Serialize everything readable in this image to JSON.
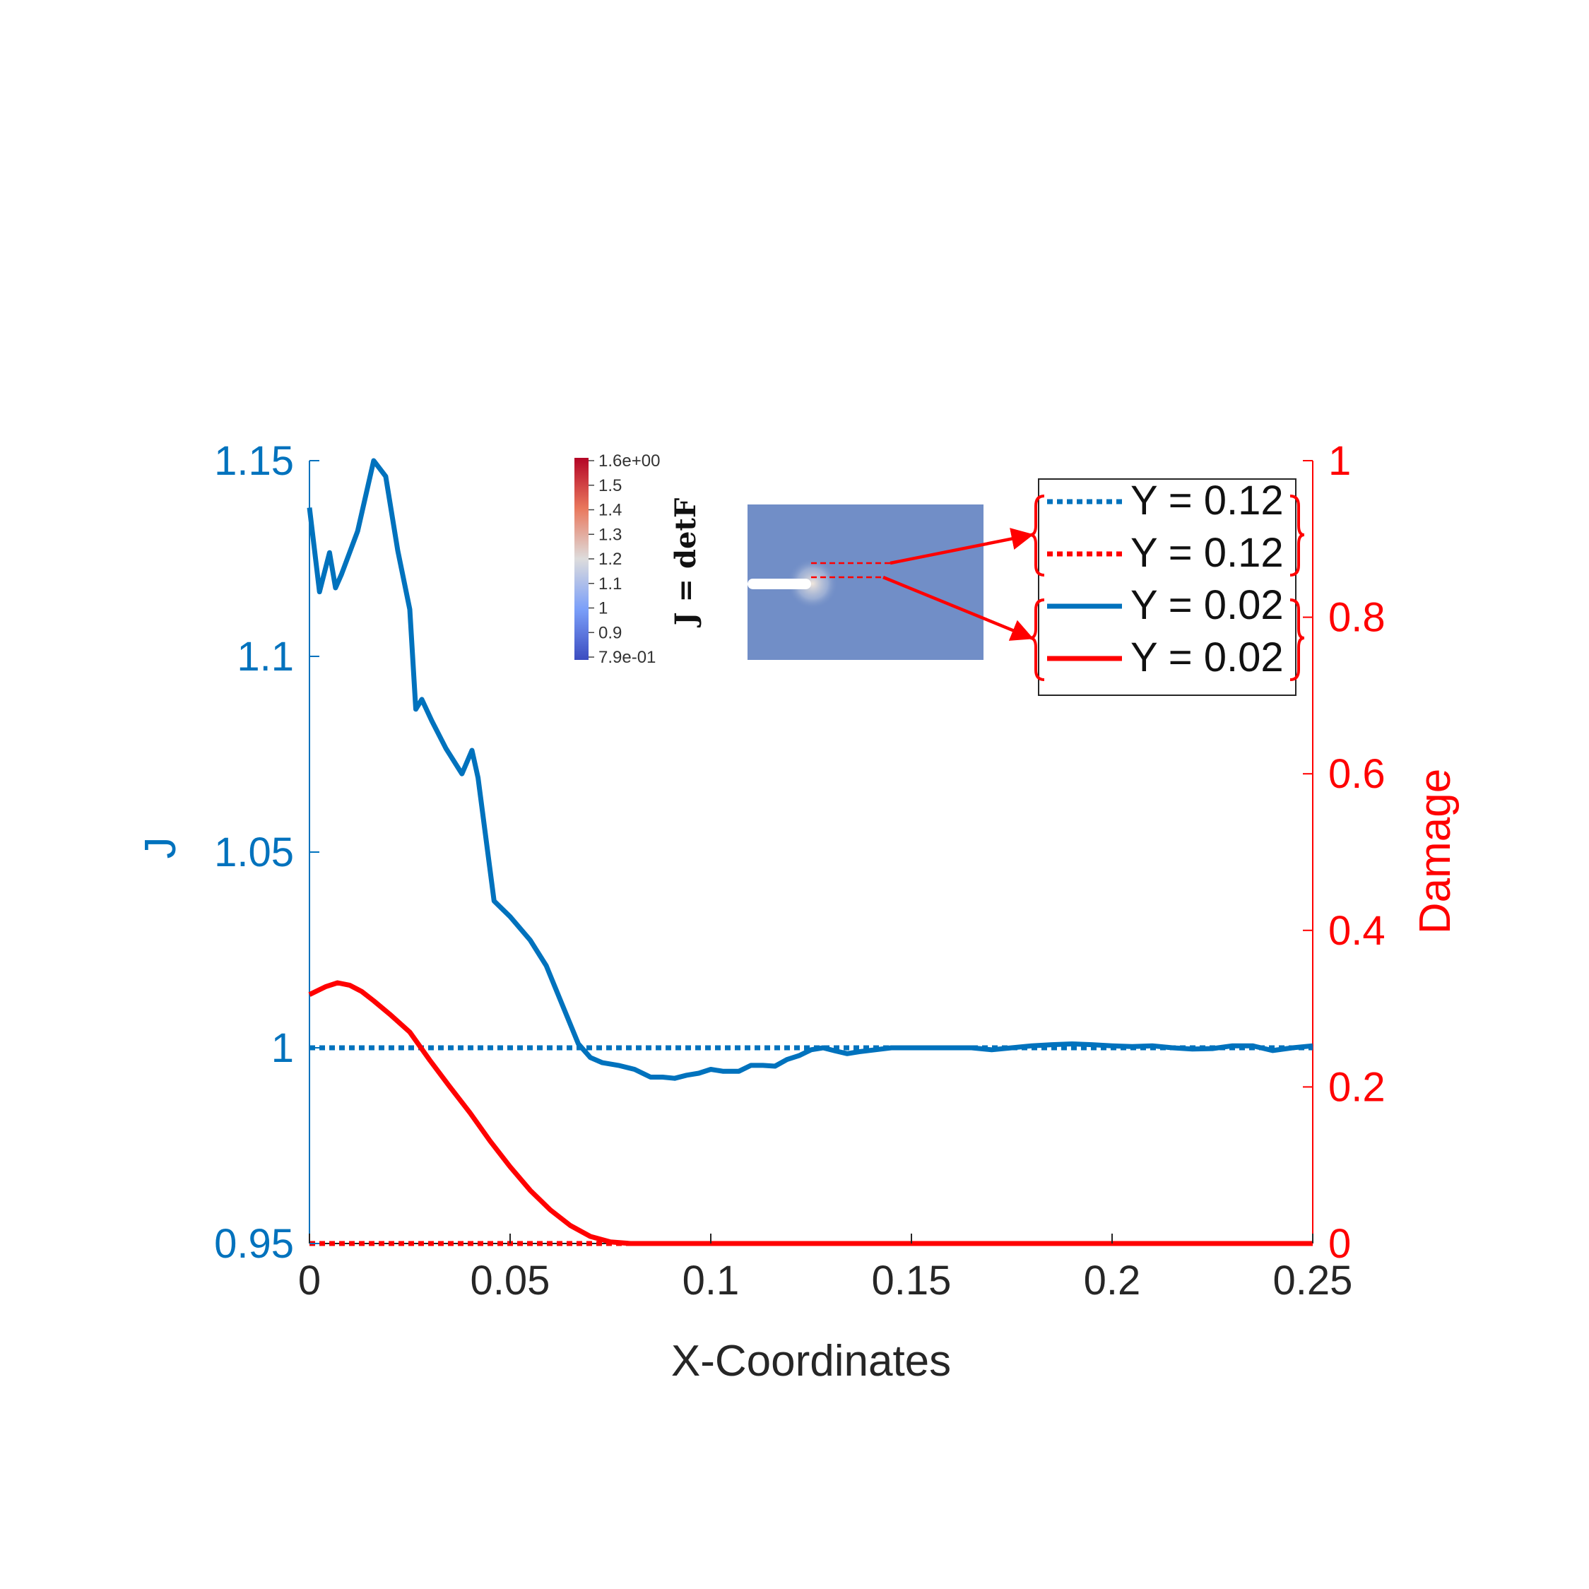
{
  "chart_data": {
    "type": "line",
    "xlabel": "X-Coordinates",
    "ylabel_left": "J",
    "ylabel_right": "Damage",
    "xlim": [
      0,
      0.25
    ],
    "ylim_left": [
      0.95,
      1.15
    ],
    "ylim_right": [
      0,
      1
    ],
    "xticks": [
      "0",
      "0.05",
      "0.1",
      "0.15",
      "0.2",
      "0.25"
    ],
    "yticks_left": [
      "0.95",
      "1",
      "1.05",
      "1.1",
      "1.15"
    ],
    "yticks_right": [
      "0",
      "0.2",
      "0.4",
      "0.6",
      "0.8",
      "1"
    ],
    "grid": false,
    "legend_position": "top-right",
    "colors": {
      "left_axis": "#0072BD",
      "right_axis": "#FF0000",
      "text": "#262626"
    },
    "series": [
      {
        "name": "Y = 0.12",
        "axis": "left",
        "style": "dotted",
        "color": "#0072BD",
        "x": [
          0,
          0.25
        ],
        "y": [
          1.0,
          1.0
        ]
      },
      {
        "name": "Y = 0.12",
        "axis": "right",
        "style": "dotted",
        "color": "#FF0000",
        "x": [
          0,
          0.25
        ],
        "y": [
          0.0,
          0.0
        ]
      },
      {
        "name": "Y = 0.02",
        "axis": "left",
        "style": "solid",
        "color": "#0072BD",
        "x": [
          0,
          0.0025,
          0.005,
          0.0065,
          0.008,
          0.012,
          0.016,
          0.019,
          0.022,
          0.025,
          0.0265,
          0.028,
          0.0305,
          0.034,
          0.038,
          0.0405,
          0.042,
          0.046,
          0.05,
          0.055,
          0.059,
          0.063,
          0.067,
          0.07,
          0.073,
          0.077,
          0.081,
          0.085,
          0.088,
          0.091,
          0.094,
          0.097,
          0.1,
          0.103,
          0.107,
          0.11,
          0.113,
          0.116,
          0.119,
          0.122,
          0.125,
          0.128,
          0.131,
          0.134,
          0.137,
          0.141,
          0.145,
          0.15,
          0.155,
          0.16,
          0.165,
          0.17,
          0.175,
          0.18,
          0.185,
          0.19,
          0.195,
          0.2,
          0.205,
          0.21,
          0.215,
          0.22,
          0.225,
          0.23,
          0.235,
          0.24,
          0.245,
          0.25
        ],
        "y": [
          1.138,
          1.1165,
          1.1265,
          1.1175,
          1.121,
          1.132,
          1.15,
          1.146,
          1.127,
          1.112,
          1.0865,
          1.089,
          1.0835,
          1.0765,
          1.07,
          1.076,
          1.069,
          1.0375,
          1.0335,
          1.0275,
          1.021,
          1.011,
          1.001,
          0.9975,
          0.9962,
          0.9955,
          0.9945,
          0.9925,
          0.9925,
          0.9922,
          0.993,
          0.9935,
          0.9945,
          0.994,
          0.994,
          0.9955,
          0.9955,
          0.9953,
          0.997,
          0.998,
          0.9995,
          1.0,
          0.9992,
          0.9985,
          0.999,
          0.9995,
          1.0,
          1.0,
          1.0,
          1.0,
          1.0,
          0.9995,
          1.0,
          1.0005,
          1.0008,
          1.001,
          1.0008,
          1.0005,
          1.0003,
          1.0005,
          1.0,
          0.9997,
          0.9998,
          1.0005,
          1.0005,
          0.9993,
          1.0,
          1.0005
        ]
      },
      {
        "name": "Y = 0.02",
        "axis": "right",
        "style": "solid",
        "color": "#FF0000",
        "x": [
          0,
          0.004,
          0.007,
          0.01,
          0.013,
          0.016,
          0.02,
          0.025,
          0.03,
          0.035,
          0.04,
          0.045,
          0.05,
          0.055,
          0.06,
          0.065,
          0.07,
          0.075,
          0.08,
          0.085,
          0.09,
          0.095,
          0.1,
          0.105,
          0.11,
          0.115,
          0.12,
          0.15,
          0.2,
          0.25
        ],
        "y": [
          0.318,
          0.328,
          0.333,
          0.33,
          0.322,
          0.31,
          0.293,
          0.27,
          0.234,
          0.2,
          0.167,
          0.131,
          0.098,
          0.068,
          0.043,
          0.023,
          0.009,
          0.002,
          0.0,
          0.0,
          0.0,
          0.0,
          0.0,
          0.0,
          0.0,
          0.0,
          0.0,
          0.0,
          0.0,
          0.0
        ]
      }
    ],
    "legend": {
      "entries": [
        {
          "label": "Y = 0.12",
          "color": "#0072BD",
          "style": "dotted"
        },
        {
          "label": "Y = 0.12",
          "color": "#FF0000",
          "style": "dotted"
        },
        {
          "label": "Y = 0.02",
          "color": "#0072BD",
          "style": "solid"
        },
        {
          "label": "Y = 0.02",
          "color": "#FF0000",
          "style": "solid"
        }
      ]
    },
    "inset": {
      "colorbar_title": "J = detF",
      "colorbar_ticks": [
        "1.6e+00",
        "1.5",
        "1.4",
        "1.3",
        "1.2",
        "1.1",
        "1",
        "0.9",
        "7.9e-01"
      ]
    }
  }
}
